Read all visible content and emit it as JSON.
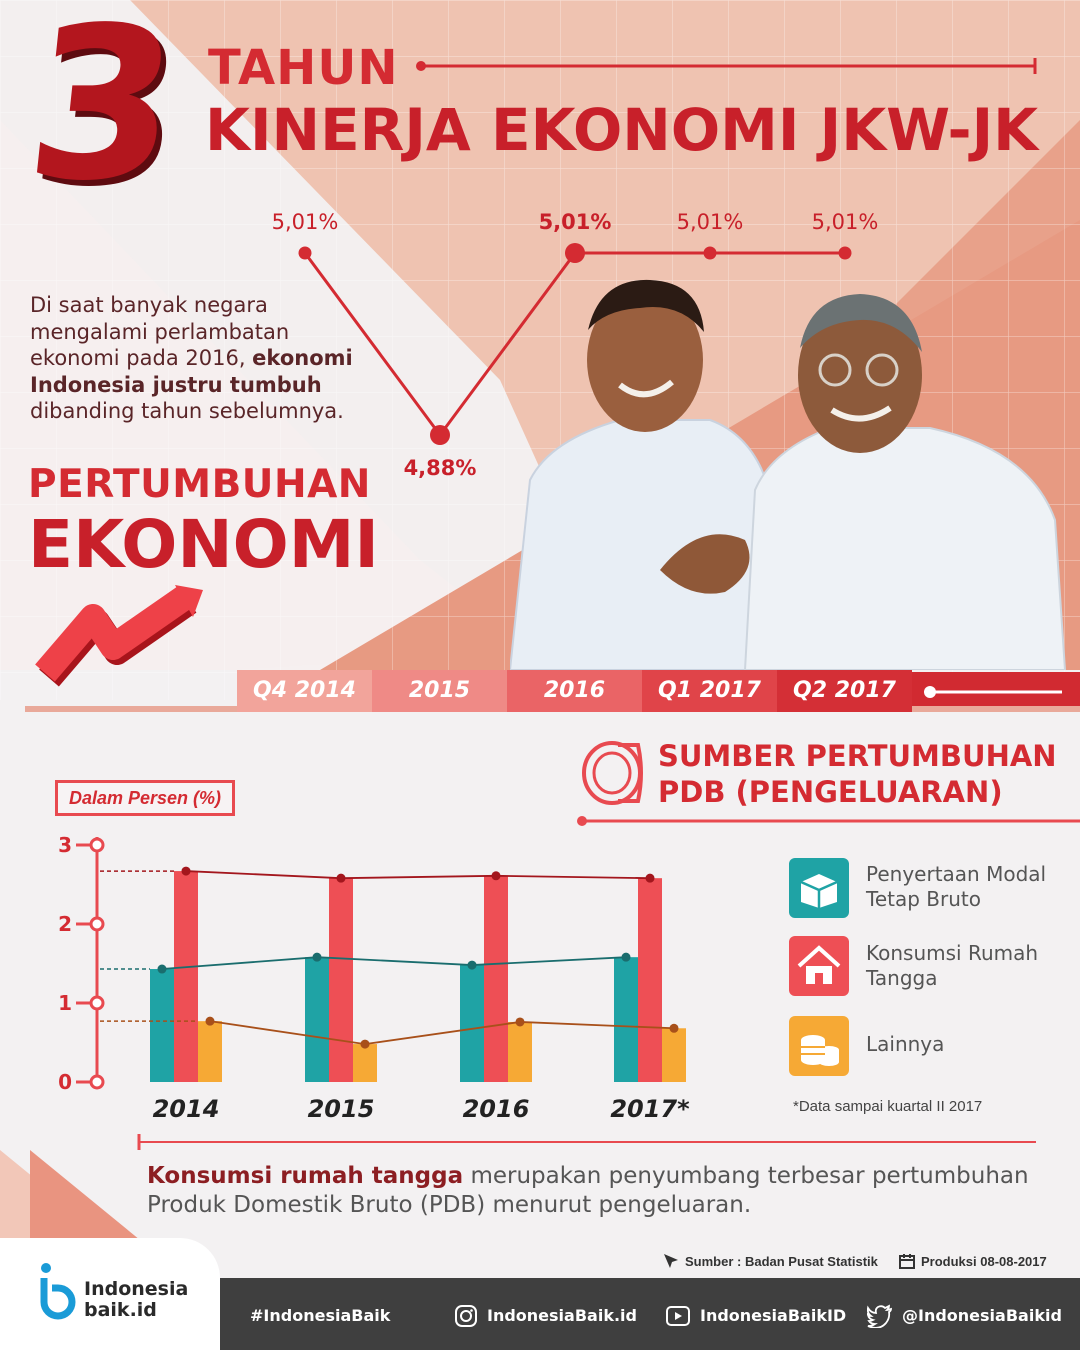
{
  "header": {
    "number": "3",
    "line1": "TAHUN",
    "line2": "KINERJA EKONOMI JKW-JK"
  },
  "intro": {
    "part1": "Di saat banyak negara mengalami perlambatan ekonomi pada 2016, ",
    "bold": "ekonomi Indonesia justru tumbuh",
    "part2": " dibanding tahun sebelumnya."
  },
  "section": {
    "line1": "PERTUMBUHAN",
    "line2": "EKONOMI"
  },
  "colors": {
    "red": "#e84a50",
    "dark_red": "#c8202a",
    "teal": "#1fa3a5",
    "orange": "#f6a935"
  },
  "chart_data": [
    {
      "type": "line",
      "categories": [
        "Q4 2014",
        "2015",
        "2016",
        "Q1 2017",
        "Q2 2017"
      ],
      "values": [
        5.01,
        4.88,
        5.01,
        5.01,
        5.01
      ],
      "labels": [
        "5,01%",
        "4,88%",
        "5,01%",
        "5,01%",
        "5,01%"
      ]
    },
    {
      "type": "bar",
      "title": "SUMBER PERTUMBUHAN PDB (PENGELUARAN)",
      "ylabel": "Dalam Persen (%)",
      "categories": [
        "2014",
        "2015",
        "2016",
        "2017*"
      ],
      "yticks": [
        "0",
        "1",
        "2",
        "3"
      ],
      "ylim": [
        0,
        3
      ],
      "series": [
        {
          "name": "Penyertaan Modal Tetap Bruto",
          "color": "#1fa3a5",
          "values": [
            1.43,
            1.58,
            1.48,
            1.58
          ]
        },
        {
          "name": "Konsumsi Rumah Tangga",
          "color": "#ee4f55",
          "values": [
            2.67,
            2.58,
            2.61,
            2.58
          ]
        },
        {
          "name": "Lainnya",
          "color": "#f6a935",
          "values": [
            0.77,
            0.48,
            0.76,
            0.68
          ]
        }
      ],
      "note": "*Data sampai kuartal II 2017"
    }
  ],
  "conclusion": {
    "bold": "Konsumsi rumah tangga",
    "rest": " merupakan penyumbang terbesar pertumbuhan Produk Domestik Bruto (PDB) menurut pengeluaran."
  },
  "credits": {
    "source": "Sumber : Badan Pusat Statistik",
    "production": "Produksi 08-08-2017"
  },
  "footer": {
    "logo_line1": "Indonesia",
    "logo_line2": "baik.id",
    "hashtag": "#IndonesiaBaik",
    "instagram": "IndonesiaBaik.id",
    "youtube": "IndonesiaBaikID",
    "twitter": "@IndonesiaBaikid"
  }
}
